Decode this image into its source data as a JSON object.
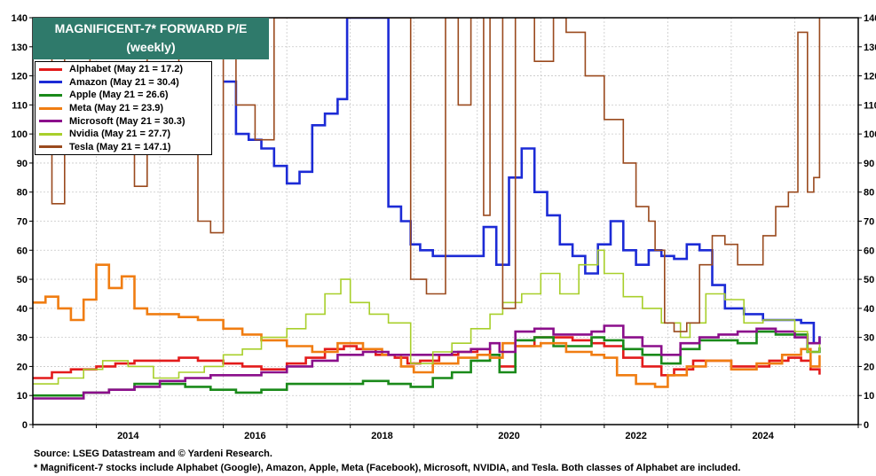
{
  "chart_data": {
    "type": "line",
    "title": "MAGNIFICENT-7* FORWARD P/E",
    "subtitle": "(weekly)",
    "ylim": [
      0,
      140
    ],
    "yticks": [
      0,
      10,
      20,
      30,
      40,
      50,
      60,
      70,
      80,
      90,
      100,
      110,
      120,
      130,
      140
    ],
    "xlim": [
      2013.0,
      2026.0
    ],
    "xticks": [
      "2014",
      "2016",
      "2018",
      "2020",
      "2022",
      "2024"
    ],
    "grid": true,
    "legend_position": "top-left",
    "series": [
      {
        "name": "Alphabet (May 21 = 17.2)",
        "color": "#e31b1b",
        "x": [
          2013.0,
          2013.3,
          2013.6,
          2014.0,
          2014.3,
          2014.6,
          2015.0,
          2015.3,
          2015.6,
          2016.0,
          2016.3,
          2016.6,
          2017.0,
          2017.3,
          2017.6,
          2017.9,
          2018.1,
          2018.4,
          2018.7,
          2018.9,
          2019.1,
          2019.4,
          2019.7,
          2020.0,
          2020.2,
          2020.35,
          2020.6,
          2020.9,
          2021.2,
          2021.5,
          2021.8,
          2022.0,
          2022.3,
          2022.6,
          2022.9,
          2023.1,
          2023.4,
          2023.7,
          2024.0,
          2024.3,
          2024.6,
          2024.9,
          2025.1,
          2025.25,
          2025.39
        ],
        "y": [
          16,
          18,
          19,
          20,
          21,
          22,
          22,
          23,
          22,
          21,
          20,
          19,
          21,
          23,
          26,
          27,
          26,
          24,
          23,
          21,
          22,
          24,
          25,
          26,
          24,
          20,
          27,
          30,
          30,
          29,
          28,
          27,
          23,
          20,
          17,
          19,
          22,
          22,
          20,
          20,
          22,
          23,
          22,
          19,
          17.2
        ]
      },
      {
        "name": "Amazon (May 21 = 30.4)",
        "color": "#1c2bd6",
        "x": [
          2016.0,
          2016.2,
          2016.4,
          2016.6,
          2016.8,
          2017.0,
          2017.2,
          2017.4,
          2017.6,
          2017.8,
          2017.95,
          2018.2,
          2018.4,
          2018.6,
          2018.8,
          2018.95,
          2019.1,
          2019.3,
          2019.6,
          2019.9,
          2020.1,
          2020.3,
          2020.5,
          2020.7,
          2020.9,
          2021.1,
          2021.3,
          2021.5,
          2021.7,
          2021.9,
          2022.1,
          2022.3,
          2022.5,
          2022.7,
          2022.9,
          2023.1,
          2023.3,
          2023.5,
          2023.7,
          2023.9,
          2024.2,
          2024.5,
          2024.8,
          2025.1,
          2025.3,
          2025.39
        ],
        "y": [
          118,
          100,
          98,
          95,
          89,
          83,
          87,
          103,
          107,
          112,
          140,
          140,
          140,
          75,
          70,
          62,
          60,
          58,
          58,
          58,
          68,
          55,
          85,
          95,
          80,
          72,
          62,
          58,
          52,
          62,
          70,
          60,
          55,
          60,
          58,
          57,
          62,
          60,
          48,
          40,
          38,
          36,
          36,
          35,
          28,
          30.4
        ]
      },
      {
        "name": "Apple (May 21 = 26.6)",
        "color": "#1a8a1a",
        "x": [
          2013.0,
          2013.4,
          2013.8,
          2014.2,
          2014.6,
          2015.0,
          2015.4,
          2015.8,
          2016.2,
          2016.6,
          2017.0,
          2017.4,
          2017.8,
          2018.2,
          2018.6,
          2018.95,
          2019.3,
          2019.6,
          2019.9,
          2020.2,
          2020.35,
          2020.6,
          2020.9,
          2021.2,
          2021.5,
          2021.8,
          2022.0,
          2022.3,
          2022.6,
          2022.9,
          2023.2,
          2023.5,
          2023.8,
          2024.1,
          2024.4,
          2024.7,
          2025.0,
          2025.2,
          2025.39
        ],
        "y": [
          10,
          10,
          11,
          12,
          14,
          14,
          13,
          12,
          11,
          12,
          14,
          14,
          14,
          15,
          14,
          13,
          16,
          18,
          22,
          24,
          18,
          29,
          30,
          27,
          27,
          30,
          29,
          26,
          24,
          21,
          26,
          29,
          29,
          28,
          32,
          31,
          31,
          25,
          26.6
        ]
      },
      {
        "name": "Meta (May 21 = 23.9)",
        "color": "#f07d12",
        "x": [
          2013.0,
          2013.2,
          2013.4,
          2013.6,
          2013.8,
          2014.0,
          2014.2,
          2014.4,
          2014.6,
          2014.8,
          2015.0,
          2015.3,
          2015.6,
          2016.0,
          2016.3,
          2016.6,
          2017.0,
          2017.4,
          2017.8,
          2018.2,
          2018.5,
          2018.8,
          2019.0,
          2019.3,
          2019.7,
          2020.0,
          2020.2,
          2020.4,
          2020.6,
          2021.0,
          2021.4,
          2021.8,
          2022.0,
          2022.2,
          2022.5,
          2022.8,
          2023.0,
          2023.3,
          2023.6,
          2024.0,
          2024.4,
          2024.8,
          2025.1,
          2025.25,
          2025.39
        ],
        "y": [
          42,
          44,
          40,
          36,
          43,
          55,
          47,
          51,
          40,
          38,
          38,
          37,
          36,
          33,
          31,
          29,
          27,
          25,
          28,
          26,
          24,
          20,
          18,
          21,
          23,
          24,
          23,
          28,
          27,
          28,
          25,
          24,
          23,
          17,
          14,
          13,
          17,
          20,
          22,
          19,
          21,
          24,
          26,
          20,
          23.9
        ]
      },
      {
        "name": "Microsoft (May 21 = 30.3)",
        "color": "#8b0f8b",
        "x": [
          2013.0,
          2013.4,
          2013.8,
          2014.2,
          2014.6,
          2015.0,
          2015.4,
          2015.8,
          2016.2,
          2016.6,
          2017.0,
          2017.4,
          2017.8,
          2018.2,
          2018.6,
          2018.95,
          2019.3,
          2019.6,
          2019.9,
          2020.2,
          2020.35,
          2020.6,
          2020.9,
          2021.2,
          2021.5,
          2021.8,
          2022.0,
          2022.3,
          2022.6,
          2022.9,
          2023.2,
          2023.5,
          2023.8,
          2024.1,
          2024.4,
          2024.7,
          2025.0,
          2025.2,
          2025.39
        ],
        "y": [
          9,
          9,
          11,
          12,
          13,
          15,
          16,
          17,
          17,
          18,
          20,
          22,
          24,
          25,
          24,
          24,
          24,
          25,
          26,
          28,
          25,
          32,
          33,
          31,
          31,
          32,
          34,
          30,
          27,
          24,
          28,
          30,
          31,
          32,
          33,
          32,
          30,
          28,
          30.3
        ]
      },
      {
        "name": "Nvidia (May 21 = 27.7)",
        "color": "#a8cf2b",
        "x": [
          2013.0,
          2013.4,
          2013.8,
          2014.1,
          2014.5,
          2014.9,
          2015.3,
          2015.7,
          2016.0,
          2016.3,
          2016.6,
          2017.0,
          2017.3,
          2017.6,
          2017.85,
          2018.0,
          2018.3,
          2018.6,
          2018.95,
          2019.3,
          2019.6,
          2019.9,
          2020.2,
          2020.4,
          2020.7,
          2021.0,
          2021.3,
          2021.6,
          2021.9,
          2022.0,
          2022.3,
          2022.6,
          2022.9,
          2023.2,
          2023.35,
          2023.6,
          2023.9,
          2024.2,
          2024.5,
          2024.8,
          2025.0,
          2025.2,
          2025.39
        ],
        "y": [
          14,
          16,
          19,
          22,
          20,
          16,
          18,
          20,
          24,
          26,
          30,
          33,
          38,
          45,
          50,
          42,
          38,
          35,
          21,
          25,
          28,
          33,
          38,
          42,
          45,
          52,
          45,
          55,
          60,
          52,
          44,
          40,
          35,
          30,
          35,
          45,
          43,
          35,
          36,
          36,
          32,
          25,
          27.7
        ]
      },
      {
        "name": "Tesla (May 21 = 147.1)",
        "color": "#9a4a1e",
        "x": [
          2013.0,
          2013.3,
          2013.5,
          2013.7,
          2013.9,
          2014.2,
          2014.4,
          2014.6,
          2014.8,
          2015.0,
          2015.3,
          2015.6,
          2015.8,
          2016.0,
          2016.2,
          2016.5,
          2016.8,
          2017.0,
          2017.3,
          2017.6,
          2017.9,
          2018.2,
          2018.5,
          2018.8,
          2018.95,
          2019.2,
          2019.5,
          2019.7,
          2019.9,
          2020.1,
          2020.2,
          2020.4,
          2020.6,
          2020.9,
          2021.2,
          2021.4,
          2021.7,
          2022.0,
          2022.3,
          2022.5,
          2022.7,
          2022.8,
          2022.95,
          2023.1,
          2023.3,
          2023.5,
          2023.7,
          2023.9,
          2024.1,
          2024.3,
          2024.5,
          2024.7,
          2024.9,
          2025.05,
          2025.2,
          2025.3,
          2025.39
        ],
        "y": [
          140,
          76,
          140,
          140,
          120,
          95,
          100,
          82,
          140,
          140,
          95,
          70,
          66,
          140,
          110,
          98,
          140,
          140,
          140,
          140,
          140,
          140,
          140,
          140,
          50,
          45,
          140,
          110,
          140,
          72,
          140,
          40,
          140,
          125,
          140,
          135,
          120,
          105,
          90,
          75,
          70,
          60,
          35,
          32,
          35,
          55,
          65,
          62,
          55,
          55,
          65,
          75,
          80,
          135,
          80,
          85,
          147.1
        ]
      }
    ]
  },
  "footer": {
    "source": "Source: LSEG Datastream and © Yardeni Research.",
    "note": "* Magnificent-7 stocks include Alphabet (Google), Amazon, Apple, Meta (Facebook), Microsoft, NVIDIA, and Tesla. Both classes of Alphabet are included."
  }
}
